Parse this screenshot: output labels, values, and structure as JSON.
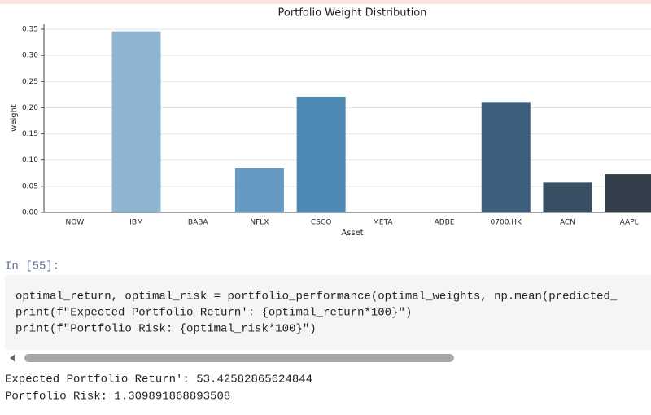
{
  "chart_data": {
    "type": "bar",
    "title": "Portfolio Weight Distribution",
    "x_label": "Asset",
    "y_label": "weight",
    "categories": [
      "NOW",
      "IBM",
      "BABA",
      "NFLX",
      "CSCO",
      "META",
      "ADBE",
      "0700.HK",
      "ACN",
      "AAPL"
    ],
    "values": [
      0,
      0.346,
      0,
      0.084,
      0.221,
      0,
      0,
      0.211,
      0.057,
      0.073
    ],
    "colors": [
      "#a3c4dc",
      "#8db4d0",
      "#79a7c9",
      "#6699c2",
      "#4f8ab5",
      "#4a7ca3",
      "#446d90",
      "#3d5f7e",
      "#3a4e64",
      "#343f4b"
    ],
    "ylim": [
      0,
      0.36
    ],
    "yticks": [
      {
        "value": 0,
        "label": "0.00"
      },
      {
        "value": 0.05,
        "label": "0.05"
      },
      {
        "value": 0.1,
        "label": "0.10"
      },
      {
        "value": 0.15,
        "label": "0.15"
      },
      {
        "value": 0.2,
        "label": "0.20"
      },
      {
        "value": 0.25,
        "label": "0.25"
      },
      {
        "value": 0.3,
        "label": "0.30"
      },
      {
        "value": 0.35,
        "label": "0.35"
      }
    ],
    "grid": true
  },
  "notebook": {
    "prompt": "In [55]:",
    "code": [
      "optimal_return, optimal_risk = portfolio_performance(optimal_weights, np.mean(predicted_",
      "print(f\"Expected Portfolio Return': {optimal_return*100}\")",
      "print(f\"Portfolio Risk: {optimal_risk*100}\")"
    ],
    "output": [
      "Expected Portfolio Return': 53.42582865624844",
      "Portfolio Risk: 1.309891868893508"
    ]
  }
}
